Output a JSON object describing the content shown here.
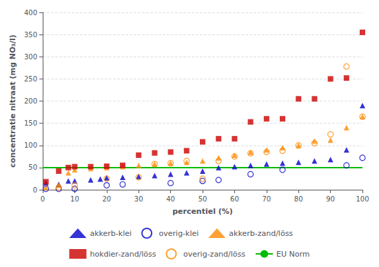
{
  "chart_data": {
    "type": "scatter",
    "xlabel": "percentiel (%)",
    "ylabel": "concentratie nitraat (mg NO₃/l)",
    "xlim": [
      0,
      100
    ],
    "ylim": [
      0,
      400
    ],
    "xticks": [
      0,
      10,
      20,
      30,
      40,
      50,
      60,
      70,
      80,
      90,
      100
    ],
    "yticks": [
      0,
      50,
      100,
      150,
      200,
      250,
      300,
      350,
      400
    ],
    "grid": "y",
    "legend": "bottom",
    "series": [
      {
        "name": "akkerb-klei",
        "color": "#0000cc",
        "marker": "triangle",
        "x": [
          1,
          5,
          8,
          10,
          15,
          18,
          20,
          25,
          30,
          35,
          40,
          45,
          50,
          55,
          60,
          65,
          70,
          75,
          80,
          85,
          90,
          95,
          100
        ],
        "values": [
          15,
          12,
          20,
          20,
          22,
          24,
          27,
          28,
          30,
          32,
          35,
          38,
          42,
          50,
          52,
          55,
          58,
          60,
          62,
          65,
          68,
          90,
          190
        ]
      },
      {
        "name": "overig-klei",
        "color": "#0000cc",
        "marker": "open-circle",
        "x": [
          1,
          5,
          10,
          20,
          25,
          40,
          50,
          55,
          65,
          75,
          95,
          100
        ],
        "values": [
          2,
          2,
          2,
          10,
          12,
          15,
          20,
          22,
          35,
          45,
          55,
          72
        ]
      },
      {
        "name": "akkerb-zand/löss",
        "color": "#ff8800",
        "marker": "triangle",
        "x": [
          1,
          5,
          8,
          10,
          15,
          20,
          25,
          30,
          35,
          40,
          45,
          50,
          55,
          60,
          65,
          70,
          75,
          80,
          85,
          90,
          95,
          100
        ],
        "values": [
          5,
          10,
          38,
          45,
          48,
          50,
          52,
          55,
          58,
          60,
          62,
          65,
          72,
          78,
          85,
          90,
          95,
          100,
          110,
          112,
          140,
          165
        ]
      },
      {
        "name": "hokdier-zand/löss",
        "color": "#cc0000",
        "marker": "square",
        "x": [
          1,
          5,
          8,
          10,
          15,
          20,
          25,
          30,
          35,
          40,
          45,
          50,
          55,
          60,
          65,
          70,
          75,
          80,
          85,
          90,
          95,
          100
        ],
        "values": [
          18,
          42,
          50,
          52,
          52,
          53,
          55,
          78,
          83,
          85,
          88,
          108,
          115,
          115,
          153,
          160,
          160,
          205,
          205,
          250,
          252,
          355
        ]
      },
      {
        "name": "overig-zand/löss",
        "color": "#ff8800",
        "marker": "open-circle",
        "x": [
          5,
          10,
          20,
          30,
          35,
          40,
          45,
          50,
          55,
          60,
          65,
          70,
          75,
          80,
          85,
          90,
          95,
          100
        ],
        "values": [
          5,
          10,
          25,
          28,
          58,
          60,
          65,
          25,
          65,
          75,
          82,
          85,
          88,
          100,
          105,
          125,
          278,
          165
        ]
      },
      {
        "name": "EU Norm",
        "type": "hline",
        "color": "#00bb00",
        "line_style": "solid",
        "values": [
          50
        ]
      }
    ]
  }
}
